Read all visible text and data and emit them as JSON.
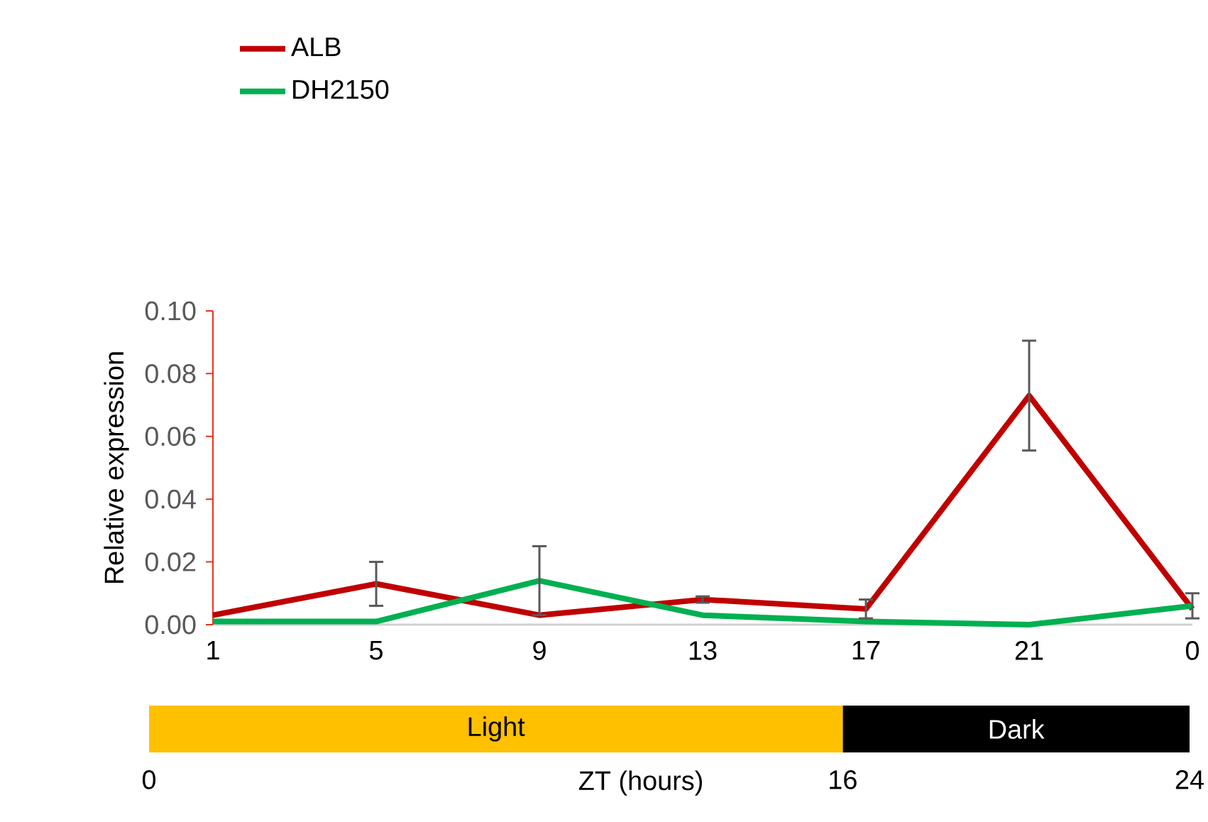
{
  "chart_data": [
    {
      "type": "line",
      "ylabel": "Relative expression",
      "categories": [
        "1",
        "5",
        "9",
        "13",
        "17",
        "21",
        "0"
      ],
      "series": [
        {
          "name": "ALB",
          "color": "#c00000",
          "values": [
            0.003,
            0.013,
            0.003,
            0.008,
            0.005,
            0.073,
            0.005
          ],
          "errors": [
            null,
            0.007,
            null,
            0.001,
            0.003,
            0.0175,
            null
          ]
        },
        {
          "name": "DH2150",
          "color": "#00b050",
          "values": [
            0.001,
            0.001,
            0.014,
            0.003,
            0.001,
            0.0,
            0.006
          ],
          "errors": [
            null,
            null,
            0.011,
            null,
            null,
            null,
            0.004
          ]
        }
      ],
      "ylim": [
        0,
        0.1
      ],
      "yticks": [
        {
          "value": 0,
          "label": "0.00"
        },
        {
          "value": 0.02,
          "label": "0.02"
        },
        {
          "value": 0.04,
          "label": "0.04"
        },
        {
          "value": 0.06,
          "label": "0.06"
        },
        {
          "value": 0.08,
          "label": "0.08"
        },
        {
          "value": 0.1,
          "label": "0.10"
        }
      ],
      "legend": "top left",
      "marker": "none",
      "line_style": "solid"
    },
    {
      "type": "bar",
      "orientation": "horizontal",
      "stacked": true,
      "xlabel": "ZT (hours)",
      "categories": [
        null
      ],
      "series": [
        {
          "name": "Light",
          "color": "#ffc000",
          "values": [
            16
          ]
        },
        {
          "name": "Dark",
          "color": "#000000",
          "values": [
            8
          ]
        }
      ],
      "xlim": [
        0,
        24
      ],
      "xticks": [
        0,
        16,
        24
      ]
    }
  ]
}
